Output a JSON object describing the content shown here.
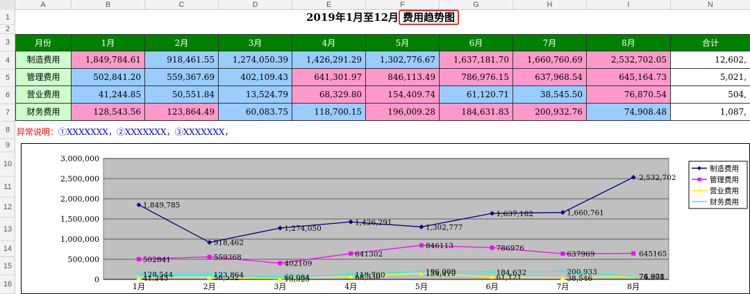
{
  "columns": [
    "A",
    "B",
    "C",
    "D",
    "E",
    "F",
    "G",
    "H",
    "I",
    "N"
  ],
  "rows": [
    "1",
    "2",
    "3",
    "4",
    "5",
    "6",
    "7",
    "8",
    "9",
    "10",
    "11",
    "12",
    "13",
    "14",
    "15",
    "16"
  ],
  "title": {
    "prefix": "2019年1月至12月",
    "highlight": "费用趋势图"
  },
  "table": {
    "header": [
      "月份",
      "1月",
      "2月",
      "3月",
      "4月",
      "5月",
      "6月",
      "7月",
      "8月",
      "合计"
    ],
    "rows": [
      {
        "label": "制造费用",
        "values": [
          "1,849,784.61",
          "918,461.55",
          "1,274,050.39",
          "1,426,291.29",
          "1,302,776.67",
          "1,637,181.70",
          "1,660,760.69",
          "2,532,702.05",
          "12,602,"
        ],
        "colors": [
          "pink",
          "blue",
          "blue",
          "blue",
          "blue",
          "pink",
          "pink",
          "pink",
          "white"
        ]
      },
      {
        "label": "管理费用",
        "values": [
          "502,841.20",
          "559,367.69",
          "402,109.43",
          "641,301.97",
          "846,113.49",
          "786,976.15",
          "637,968.54",
          "645,164.73",
          "5,021,"
        ],
        "colors": [
          "blue",
          "blue",
          "blue",
          "pink",
          "pink",
          "pink",
          "pink",
          "pink",
          "white"
        ]
      },
      {
        "label": "营业费用",
        "values": [
          "41,244.85",
          "50,551.84",
          "13,524.79",
          "68,329.80",
          "154,409.74",
          "61,120.71",
          "38,545.50",
          "76,870.54",
          "504,"
        ],
        "colors": [
          "blue",
          "blue",
          "blue",
          "pink",
          "pink",
          "blue",
          "blue",
          "pink",
          "white"
        ]
      },
      {
        "label": "财务费用",
        "values": [
          "128,543.56",
          "123,864.49",
          "60,083.75",
          "118,700.15",
          "196,009.28",
          "184,631.83",
          "200,932.76",
          "74,908.48",
          "1,087,"
        ],
        "colors": [
          "pink",
          "pink",
          "blue",
          "blue",
          "pink",
          "pink",
          "pink",
          "blue",
          "white"
        ]
      }
    ]
  },
  "note": {
    "prefix": "异常说明：",
    "items": "①XXXXXXX，②XXXXXXX，③XXXXXXX，"
  },
  "colors": {
    "header_green": "#008000",
    "label_green": "#ccffcc",
    "pink": "#ff99cc",
    "blue": "#99ccff",
    "plot_gray": "#c0c0c0",
    "title_box": "#d9352c"
  },
  "chart_data": {
    "type": "line",
    "categories": [
      "1月",
      "2月",
      "3月",
      "4月",
      "5月",
      "6月",
      "7月",
      "8月"
    ],
    "yticks": [
      "3,000,000",
      "2,500,000",
      "2,000,000",
      "1,500,000",
      "1,000,000",
      "500,000",
      "0"
    ],
    "ylim": [
      0,
      3000000
    ],
    "grid": true,
    "legend": "right",
    "series": [
      {
        "name": "制造费用",
        "color": "#000080",
        "marker": "diamond",
        "values": [
          1849785,
          918462,
          1274050,
          1426291,
          1302777,
          1637182,
          1660761,
          2532702
        ],
        "labels": [
          "1,849,785",
          "918,462",
          "1,274,050",
          "1,426,291",
          "1,302,777",
          "1,637,182",
          "1,660,761",
          "2,532,702"
        ]
      },
      {
        "name": "管理费用",
        "color": "#ff00ff",
        "marker": "square",
        "values": [
          502841,
          559368,
          402109,
          641302,
          846113,
          786976,
          637969,
          645165
        ],
        "labels": [
          "502841",
          "559368",
          "402109",
          "641302",
          "846113",
          "786976",
          "637969",
          "645165"
        ]
      },
      {
        "name": "营业费用",
        "color": "#ffff00",
        "marker": "triangle",
        "values": [
          41245,
          50552,
          13525,
          68330,
          154410,
          61121,
          38546,
          76871
        ],
        "labels": [
          "41,245",
          "50,552",
          "13,525",
          "68,330",
          "154,410",
          "61,121",
          "38,546",
          "76,871"
        ]
      },
      {
        "name": "财务费用",
        "color": "#00ffff",
        "marker": "cross",
        "values": [
          128544,
          123864,
          60084,
          118700,
          196009,
          184632,
          200933,
          74908
        ],
        "labels": [
          "128,544",
          "123,864",
          "60,084",
          "118,700",
          "196,009",
          "184,632",
          "200,933",
          "74,908"
        ]
      }
    ]
  }
}
